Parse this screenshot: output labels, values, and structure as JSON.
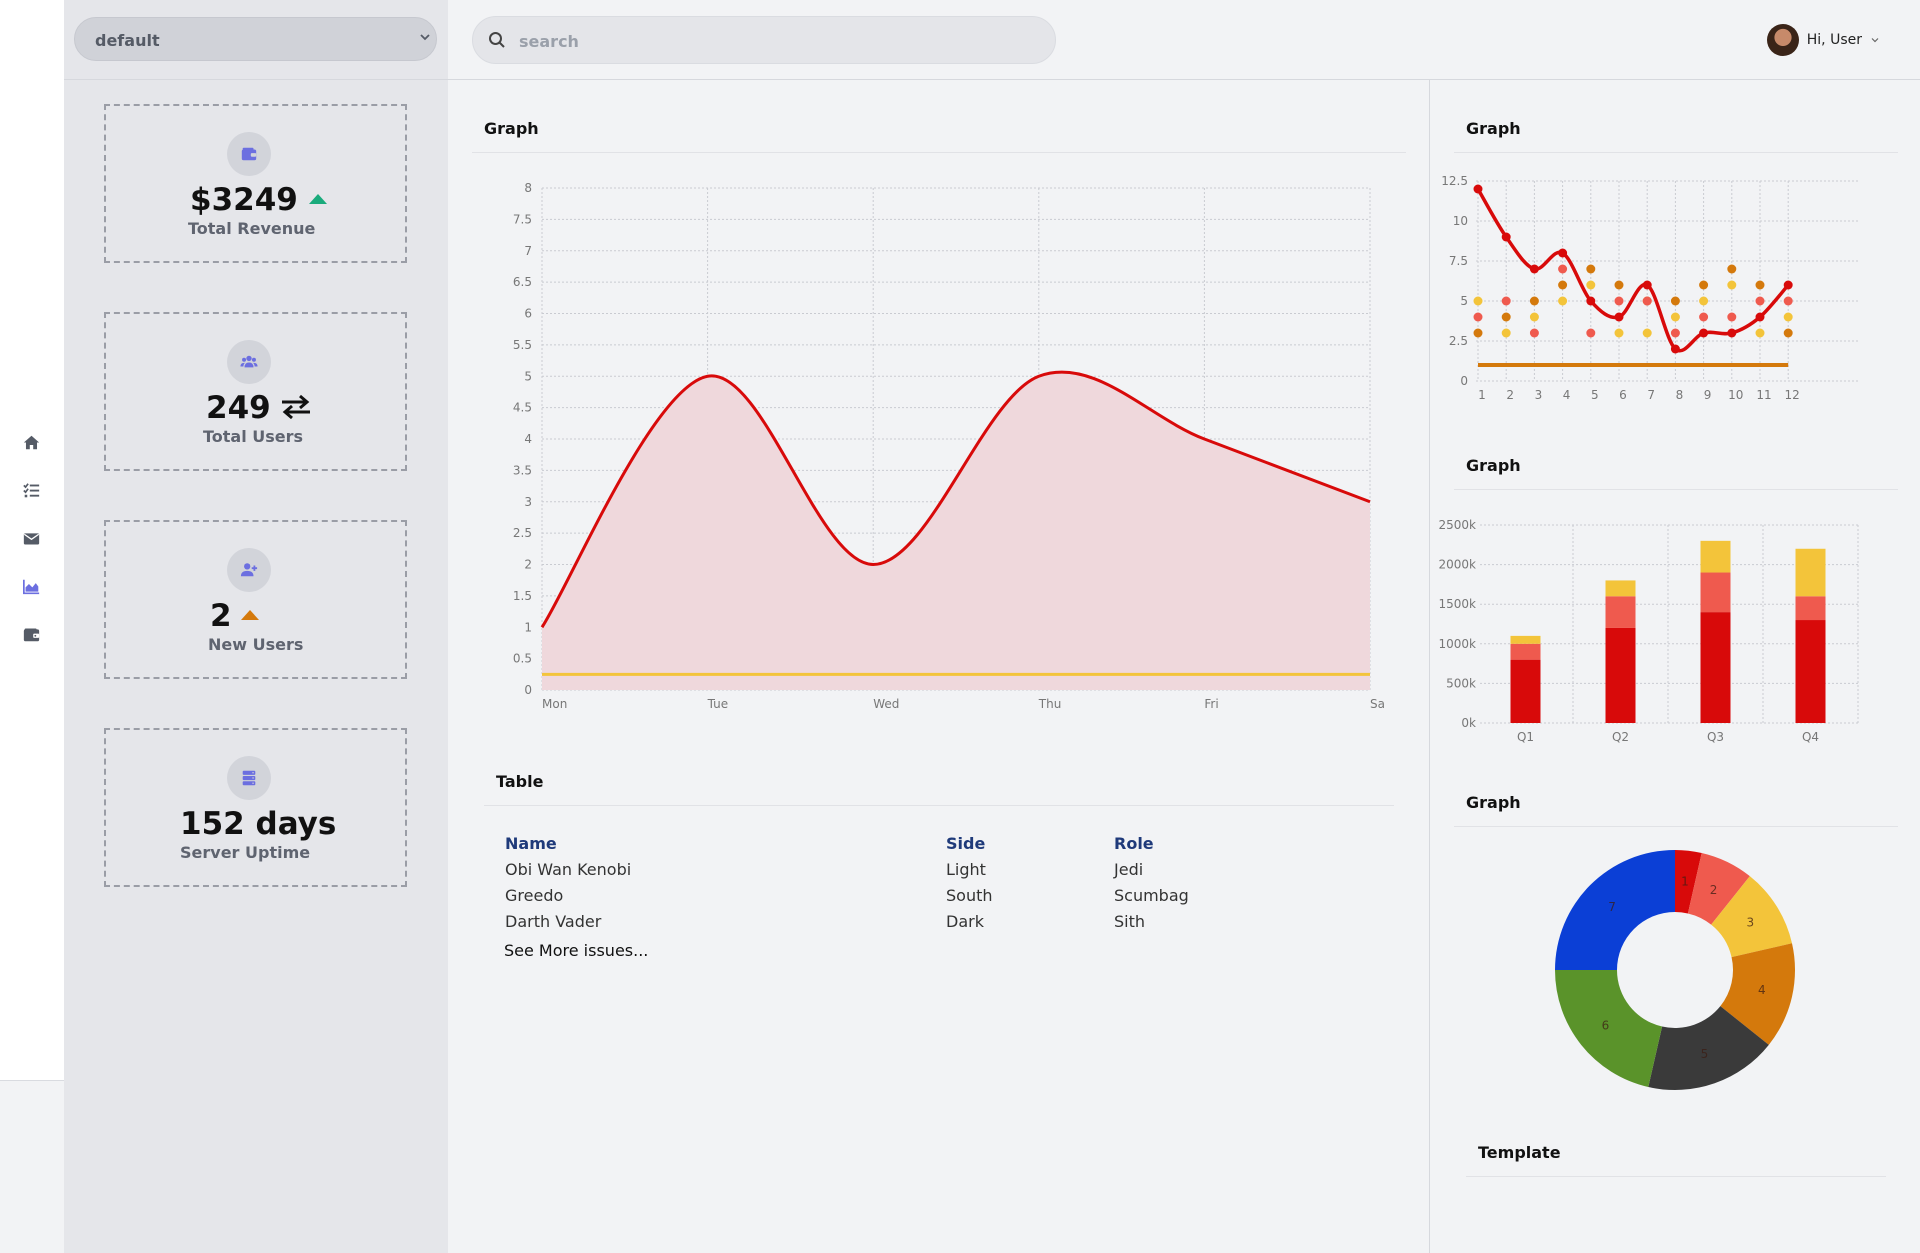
{
  "nav": {
    "items": [
      {
        "icon": "home-icon",
        "active": false
      },
      {
        "icon": "task-list-icon",
        "active": false
      },
      {
        "icon": "mail-icon",
        "active": false
      },
      {
        "icon": "area-chart-icon",
        "active": true
      },
      {
        "icon": "wallet-icon",
        "active": false
      }
    ]
  },
  "env_select": {
    "value": "default"
  },
  "search": {
    "placeholder": "search",
    "value": ""
  },
  "user": {
    "greeting": "Hi, User"
  },
  "cards": [
    {
      "value": "$3249",
      "label": "Total Revenue",
      "icon": "wallet-icon",
      "trend": "up",
      "trend_color": "#1aab7c"
    },
    {
      "value": "249",
      "label": "Total Users",
      "icon": "users-icon",
      "trend": "exchange"
    },
    {
      "value": "2",
      "label": "New Users",
      "icon": "user-plus-icon",
      "trend": "up",
      "trend_color": "#d4790c"
    },
    {
      "value": "152 days",
      "label": "Server Uptime",
      "icon": "server-icon",
      "trend": "none"
    }
  ],
  "panels": {
    "main_graph_title": "Graph",
    "table_title": "Table",
    "right_graph1_title": "Graph",
    "right_graph2_title": "Graph",
    "right_graph3_title": "Graph",
    "template_title": "Template"
  },
  "table": {
    "headers": [
      "Name",
      "Side",
      "Role"
    ],
    "rows": [
      [
        "Obi Wan Kenobi",
        "Light",
        "Jedi"
      ],
      [
        "Greedo",
        "South",
        "Scumbag"
      ],
      [
        "Darth Vader",
        "Dark",
        "Sith"
      ]
    ],
    "more_link": "See More issues..."
  },
  "colors": {
    "red": "#d80a0a",
    "salmon": "#ef5a4e",
    "yellow": "#f3c43a",
    "orange": "#d4790c",
    "green": "#5a932a",
    "blue": "#0b3fd6",
    "dark": "#3a3a3a",
    "accent": "#6c6fe0"
  },
  "chart_data": [
    {
      "type": "area",
      "categories": [
        "Mon",
        "Tue",
        "Wed",
        "Thu",
        "Fri",
        "Sa"
      ],
      "ylim": [
        0,
        8
      ],
      "yticks": [
        "0",
        "0.5",
        "1",
        "1.5",
        "2",
        "2.5",
        "3",
        "3.5",
        "4",
        "4.5",
        "5",
        "5.5",
        "6",
        "6.5",
        "7",
        "7.5",
        "8"
      ],
      "grid": true,
      "series": [
        {
          "values": [
            1,
            5,
            2,
            5,
            4,
            3
          ],
          "color": "#d80a0a",
          "fill": "#efd8dc"
        },
        {
          "values": [
            0.25,
            0.25,
            0.25,
            0.25,
            0.25,
            0.25
          ],
          "color": "#f3c43a"
        }
      ]
    },
    {
      "type": "scatter",
      "x": [
        1,
        2,
        3,
        4,
        5,
        6,
        7,
        8,
        9,
        10,
        11,
        12
      ],
      "xticks": [
        "1",
        "2",
        "3",
        "4",
        "5",
        "6",
        "7",
        "8",
        "9",
        "10",
        "11",
        "12"
      ],
      "ylim": [
        0,
        12.5
      ],
      "yticks": [
        "0",
        "2.5",
        "5",
        "7.5",
        "10",
        "12.5"
      ],
      "grid": true,
      "series": [
        {
          "type": "line",
          "color": "#d80a0a",
          "values": [
            12,
            9,
            7,
            8,
            5,
            4,
            6,
            2,
            3,
            3,
            4,
            6
          ]
        },
        {
          "type": "line",
          "color": "#d4790c",
          "values": [
            1,
            1,
            1,
            1,
            1,
            1,
            1,
            1,
            1,
            1,
            1,
            1
          ]
        },
        {
          "type": "scatter",
          "color": "#d4790c",
          "values": [
            3,
            4,
            5,
            6,
            7,
            6,
            5,
            5,
            6,
            7,
            6,
            3
          ]
        },
        {
          "type": "scatter",
          "color": "#ef5a4e",
          "values": [
            4,
            5,
            3,
            7,
            3,
            5,
            5,
            3,
            4,
            4,
            5,
            5
          ]
        },
        {
          "type": "scatter",
          "color": "#f3c43a",
          "values": [
            5,
            3,
            4,
            5,
            6,
            3,
            3,
            4,
            5,
            6,
            3,
            4
          ]
        }
      ]
    },
    {
      "type": "bar",
      "stacked": true,
      "categories": [
        "Q1",
        "Q2",
        "Q3",
        "Q4"
      ],
      "ylim": [
        0,
        2500
      ],
      "yticks": [
        "0k",
        "500k",
        "1000k",
        "1500k",
        "2000k",
        "2500k"
      ],
      "grid": true,
      "series": [
        {
          "color": "#d80a0a",
          "values": [
            800,
            1200,
            1400,
            1300
          ]
        },
        {
          "color": "#ef5a4e",
          "values": [
            200,
            400,
            500,
            300
          ]
        },
        {
          "color": "#f3c43a",
          "values": [
            100,
            200,
            400,
            600
          ]
        }
      ]
    },
    {
      "type": "pie",
      "donut": true,
      "slices": [
        {
          "label": "1",
          "value": 1,
          "color": "#d80a0a"
        },
        {
          "label": "2",
          "value": 2,
          "color": "#ef5a4e"
        },
        {
          "label": "3",
          "value": 3,
          "color": "#f3c43a"
        },
        {
          "label": "4",
          "value": 4,
          "color": "#d4790c"
        },
        {
          "label": "5",
          "value": 5,
          "color": "#3a3a3a"
        },
        {
          "label": "6",
          "value": 6,
          "color": "#5a932a"
        },
        {
          "label": "7",
          "value": 7,
          "color": "#0b3fd6"
        }
      ]
    }
  ]
}
